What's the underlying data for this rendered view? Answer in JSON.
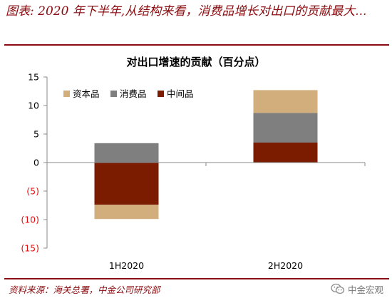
{
  "header": {
    "heading": "图表: 2020 年下半年,从结构来看，消费品增长对出口的贡献最大..."
  },
  "chart_data": {
    "type": "bar",
    "stacked": true,
    "title": "对出口增速的贡献（百分点）",
    "categories": [
      "1H2020",
      "2H2020"
    ],
    "series": [
      {
        "name": "资本品",
        "values": [
          -2.5,
          4.0
        ],
        "color": "#d2ae7c"
      },
      {
        "name": "消费品",
        "values": [
          3.4,
          5.2
        ],
        "color": "#7f7f7f"
      },
      {
        "name": "中间品",
        "values": [
          -7.4,
          3.5
        ],
        "color": "#7b1c00"
      }
    ],
    "ylim": [
      -15,
      15
    ],
    "ytick_values": [
      -15,
      -10,
      -5,
      0,
      5,
      10,
      15
    ],
    "ytick_labels": [
      "(15)",
      "(10)",
      "(5)",
      "0",
      "5",
      "10",
      "15"
    ],
    "negative_tick_color": "#e01010",
    "legend_position": "top-left",
    "grid": false
  },
  "footer": {
    "source": "资料来源：海关总署，中金公司研究部",
    "brand": "中金宏观",
    "brand_icon": "wechat-icon"
  }
}
